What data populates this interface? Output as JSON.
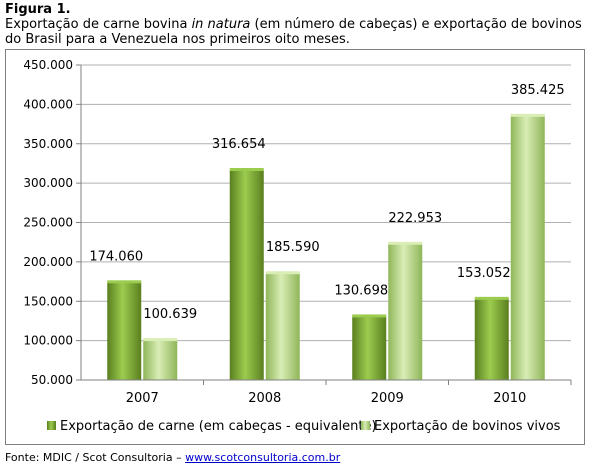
{
  "figure": {
    "label": "Figura 1.",
    "caption_before": "Exportação de carne bovina ",
    "caption_italic": "in natura",
    "caption_after": " (em número de cabeças) e exportação de bovinos do Brasil para a Venezuela nos primeiros oito meses."
  },
  "source": {
    "prefix": "Fonte: MDIC / Scot Consultoria – ",
    "link": "www.scotconsultoria.com.br"
  },
  "colors": {
    "series1_dark": "#5a7f1f",
    "series1_light": "#9ccc4f",
    "series2_dark": "#8fb65a",
    "series2_light": "#d9edb5",
    "gridline": "#b0b0b0"
  },
  "chart_data": {
    "type": "bar",
    "categories": [
      "2007",
      "2008",
      "2009",
      "2010"
    ],
    "series": [
      {
        "name": "Exportação de carne (em cabeças - equivalente)",
        "values": [
          174060,
          316654,
          130698,
          153052
        ],
        "labels": [
          "174.060",
          "316.654",
          "130.698",
          "153.052"
        ]
      },
      {
        "name": "Exportação de bovinos vivos",
        "values": [
          100639,
          185590,
          222953,
          385425
        ],
        "labels": [
          "100.639",
          "185.590",
          "222.953",
          "385.425"
        ]
      }
    ],
    "ylim": [
      50000,
      450000
    ],
    "yticks": [
      50000,
      100000,
      150000,
      200000,
      250000,
      300000,
      350000,
      400000,
      450000
    ],
    "ytick_labels": [
      "50.000",
      "100.000",
      "150.000",
      "200.000",
      "250.000",
      "300.000",
      "350.000",
      "400.000",
      "450.000"
    ],
    "grid": true,
    "legend_position": "bottom"
  }
}
